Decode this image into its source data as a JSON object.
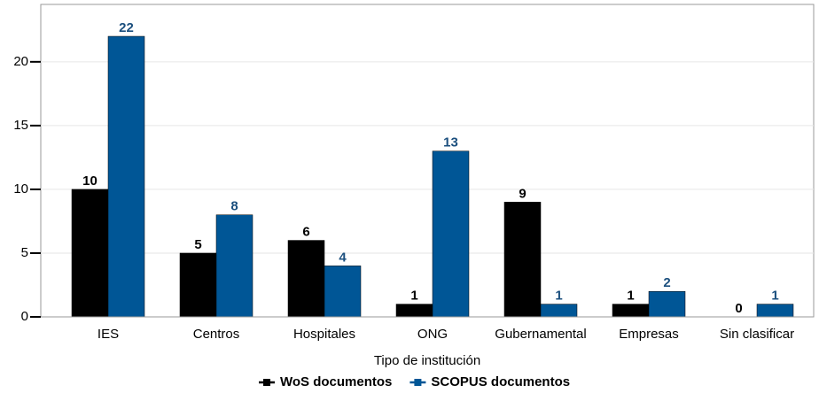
{
  "chart_data": {
    "type": "bar",
    "categories": [
      "IES",
      "Centros",
      "Hospitales",
      "ONG",
      "Gubernamental",
      "Empresas",
      "Sin clasificar"
    ],
    "series": [
      {
        "name": "WoS documentos",
        "color": "#000000",
        "values": [
          10,
          5,
          6,
          1,
          9,
          1,
          0
        ]
      },
      {
        "name": "SCOPUS documentos",
        "color": "#005696",
        "values": [
          22,
          8,
          4,
          13,
          1,
          2,
          1
        ]
      }
    ],
    "x_label": "Tipo de institución",
    "ylim": [
      0,
      24.5
    ],
    "yticks": [
      0,
      5,
      10,
      15,
      20
    ],
    "grid": true,
    "legend": "bottom"
  }
}
